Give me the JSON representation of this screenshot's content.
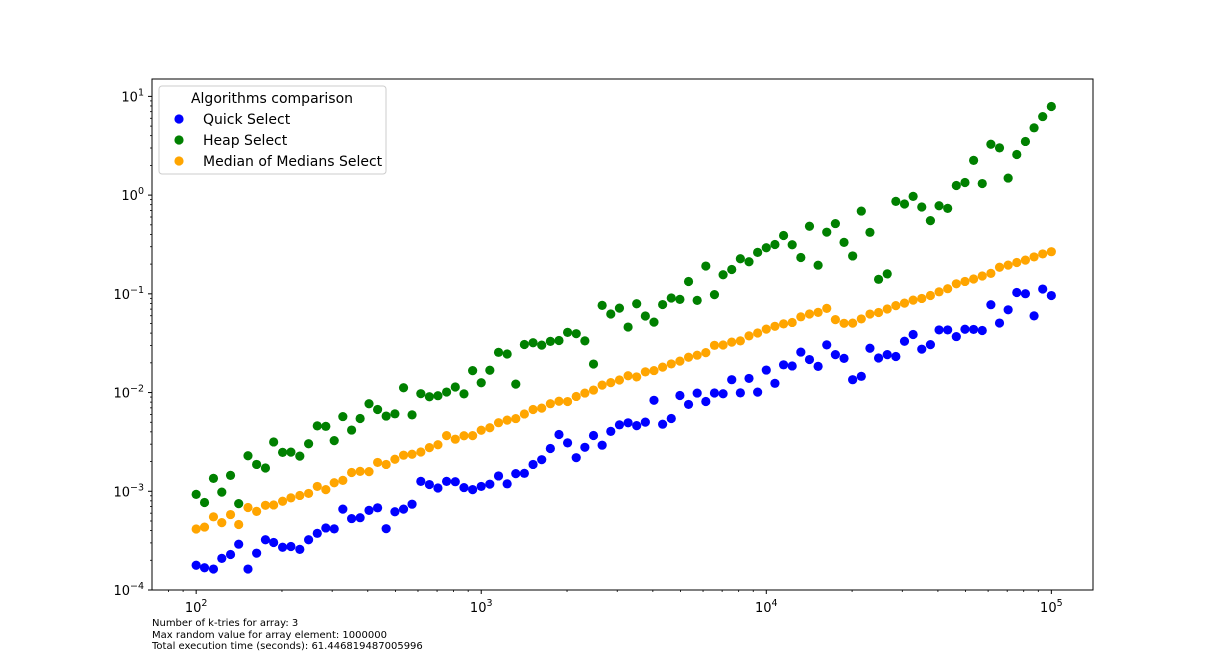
{
  "chart_data": {
    "type": "scatter",
    "title": "",
    "xlabel": "",
    "ylabel": "",
    "xscale": "log",
    "yscale": "log",
    "xlim": [
      70,
      140000
    ],
    "ylim": [
      0.0001,
      15
    ],
    "grid": false,
    "legend": {
      "title": "Algorithms comparison",
      "position": "top-left"
    },
    "x_ticks": [
      {
        "value": 100,
        "base": "10",
        "exp": "2"
      },
      {
        "value": 1000,
        "base": "10",
        "exp": "3"
      },
      {
        "value": 10000,
        "base": "10",
        "exp": "4"
      },
      {
        "value": 100000,
        "base": "10",
        "exp": "5"
      }
    ],
    "y_ticks": [
      {
        "value": 0.0001,
        "base": "10",
        "exp": "−4"
      },
      {
        "value": 0.001,
        "base": "10",
        "exp": "−3"
      },
      {
        "value": 0.01,
        "base": "10",
        "exp": "−2"
      },
      {
        "value": 0.1,
        "base": "10",
        "exp": "−1"
      },
      {
        "value": 1,
        "base": "10",
        "exp": "0"
      },
      {
        "value": 10,
        "base": "10",
        "exp": "1"
      }
    ],
    "x": [
      100,
      107,
      115,
      123,
      132,
      141,
      152,
      163,
      175,
      187,
      201,
      215,
      231,
      248,
      266,
      285,
      305,
      327,
      351,
      376,
      404,
      433,
      464,
      498,
      534,
      572,
      614,
      658,
      705,
      756,
      811,
      870,
      933,
      1000,
      1072,
      1150,
      1233,
      1322,
      1417,
      1520,
      1630,
      1748,
      1874,
      2009,
      2154,
      2310,
      2477,
      2656,
      2848,
      3054,
      3275,
      3511,
      3765,
      4037,
      4329,
      4642,
      4977,
      5337,
      5722,
      6136,
      6579,
      7055,
      7565,
      8111,
      8697,
      9326,
      10000,
      10723,
      11498,
      12328,
      13219,
      14175,
      15199,
      16298,
      17475,
      18738,
      20092,
      21544,
      23101,
      24771,
      26561,
      28480,
      30539,
      32745,
      35112,
      37649,
      40370,
      43288,
      46416,
      49770,
      53367,
      57224,
      61359,
      65793,
      70548,
      75646,
      81113,
      86975,
      93260,
      100000
    ],
    "series": [
      {
        "name": "Quick Select",
        "color": "#0000ff",
        "values": [
          0.000178,
          0.000168,
          0.000163,
          0.000209,
          0.000229,
          0.000291,
          0.000163,
          0.000236,
          0.000323,
          0.000303,
          0.000271,
          0.000276,
          0.000258,
          0.000323,
          0.000375,
          0.000425,
          0.000416,
          0.00066,
          0.000529,
          0.00054,
          0.00064,
          0.00068,
          0.000418,
          0.00062,
          0.00066,
          0.00074,
          0.00126,
          0.00117,
          0.00108,
          0.00126,
          0.00125,
          0.00109,
          0.00104,
          0.00112,
          0.00118,
          0.00143,
          0.00119,
          0.00151,
          0.00152,
          0.00187,
          0.00209,
          0.00271,
          0.00376,
          0.00309,
          0.00219,
          0.00279,
          0.00367,
          0.00293,
          0.00404,
          0.00471,
          0.00494,
          0.00462,
          0.00502,
          0.00835,
          0.00478,
          0.00546,
          0.00934,
          0.00758,
          0.00988,
          0.00812,
          0.00989,
          0.00973,
          0.0135,
          0.00993,
          0.0139,
          0.0101,
          0.0169,
          0.0124,
          0.0191,
          0.0186,
          0.0257,
          0.0216,
          0.0184,
          0.0304,
          0.0242,
          0.0222,
          0.0135,
          0.0146,
          0.0281,
          0.0224,
          0.0242,
          0.0232,
          0.0331,
          0.0387,
          0.0275,
          0.0306,
          0.0431,
          0.0431,
          0.0369,
          0.0438,
          0.0436,
          0.0425,
          0.0776,
          0.0506,
          0.0689,
          0.1032,
          0.1003,
          0.0598,
          0.1118,
          0.0961
        ]
      },
      {
        "name": "Heap Select",
        "color": "#008000",
        "values": [
          0.00093,
          0.00077,
          0.00135,
          0.00098,
          0.00145,
          0.00075,
          0.00229,
          0.00187,
          0.00172,
          0.00316,
          0.00248,
          0.00249,
          0.00227,
          0.00303,
          0.0046,
          0.00455,
          0.00326,
          0.00571,
          0.00417,
          0.00546,
          0.0077,
          0.00673,
          0.00578,
          0.00609,
          0.01119,
          0.00594,
          0.00974,
          0.00907,
          0.00929,
          0.01012,
          0.01139,
          0.00969,
          0.01667,
          0.01257,
          0.01683,
          0.02556,
          0.02457,
          0.01217,
          0.03069,
          0.03197,
          0.03025,
          0.03302,
          0.03365,
          0.04066,
          0.03949,
          0.03337,
          0.01944,
          0.07642,
          0.06247,
          0.07171,
          0.04609,
          0.0793,
          0.05963,
          0.05172,
          0.07788,
          0.0908,
          0.0878,
          0.13326,
          0.08577,
          0.1912,
          0.0981,
          0.15597,
          0.17645,
          0.22671,
          0.21117,
          0.2629,
          0.29286,
          0.3161,
          0.38999,
          0.31434,
          0.23331,
          0.48357,
          0.19498,
          0.42123,
          0.51474,
          0.33212,
          0.24198,
          0.6891,
          0.41978,
          0.14025,
          0.15915,
          0.86327,
          0.81305,
          0.97083,
          0.75807,
          0.55187,
          0.77983,
          0.73347,
          1.2511,
          1.3428,
          2.2464,
          1.3096,
          3.2751,
          3.0109,
          1.4874,
          2.5793,
          3.4947,
          4.8031,
          6.2434,
          7.8978
        ]
      },
      {
        "name": "Median of Medians Select",
        "color": "#ffa500",
        "values": [
          0.000415,
          0.000434,
          0.000551,
          0.000481,
          0.000581,
          0.000461,
          0.000685,
          0.000626,
          0.000721,
          0.000727,
          0.000793,
          0.000858,
          0.000907,
          0.000951,
          0.00112,
          0.00104,
          0.00122,
          0.00129,
          0.00155,
          0.00159,
          0.00158,
          0.00196,
          0.00187,
          0.00211,
          0.00232,
          0.00237,
          0.0025,
          0.00277,
          0.00296,
          0.00366,
          0.00337,
          0.00365,
          0.00366,
          0.00415,
          0.0044,
          0.00495,
          0.00526,
          0.00545,
          0.00607,
          0.00673,
          0.00695,
          0.00771,
          0.00817,
          0.00811,
          0.00913,
          0.00988,
          0.0106,
          0.0119,
          0.0126,
          0.0134,
          0.0148,
          0.0144,
          0.0162,
          0.0167,
          0.0181,
          0.0195,
          0.0208,
          0.0228,
          0.0239,
          0.0254,
          0.0301,
          0.0303,
          0.0324,
          0.0334,
          0.0375,
          0.0401,
          0.0439,
          0.0469,
          0.0496,
          0.0513,
          0.0585,
          0.0625,
          0.0649,
          0.0712,
          0.0548,
          0.0503,
          0.0505,
          0.0557,
          0.0624,
          0.0647,
          0.0702,
          0.0759,
          0.0805,
          0.0864,
          0.0898,
          0.0962,
          0.1048,
          0.1127,
          0.1264,
          0.1335,
          0.1413,
          0.1516,
          0.1612,
          0.1859,
          0.1955,
          0.2078,
          0.2196,
          0.2365,
          0.2536,
          0.2672
        ]
      }
    ],
    "footnotes": [
      "Number of k-tries for array: 3",
      "Max random value for array element: 1000000",
      "Total execution time (seconds): 61.446819487005996"
    ]
  }
}
